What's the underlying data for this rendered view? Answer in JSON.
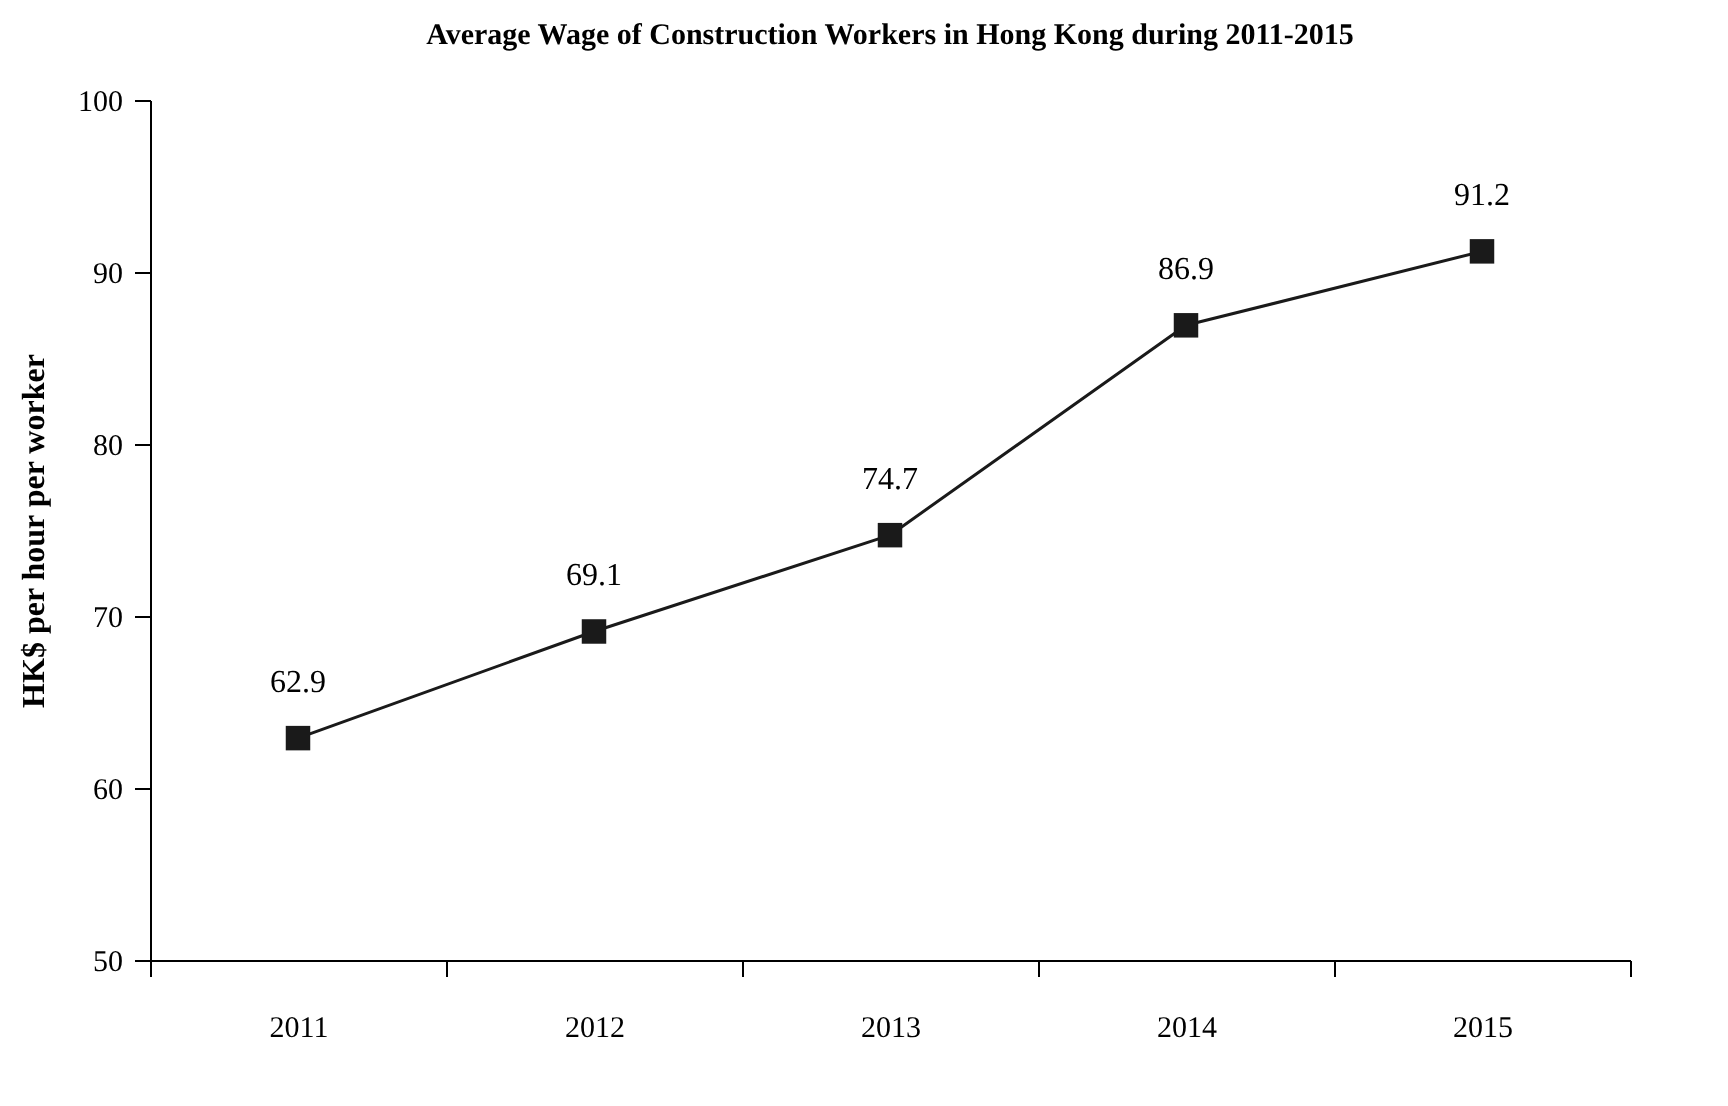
{
  "chart_data": {
    "type": "line",
    "title": "Average Wage of Construction Workers in Hong Kong during 2011-2015",
    "ylabel": "HK$ per hour per worker",
    "categories": [
      "2011",
      "2012",
      "2013",
      "2014",
      "2015"
    ],
    "series": [
      {
        "color": "#1a1a1a",
        "values": [
          62.9,
          69.1,
          74.7,
          86.9,
          91.2
        ]
      }
    ],
    "ylim": [
      50,
      100
    ],
    "yticks": [
      50,
      60,
      70,
      80,
      90,
      100
    ],
    "data_labels": true,
    "marker": "square",
    "line_style": "solid"
  }
}
